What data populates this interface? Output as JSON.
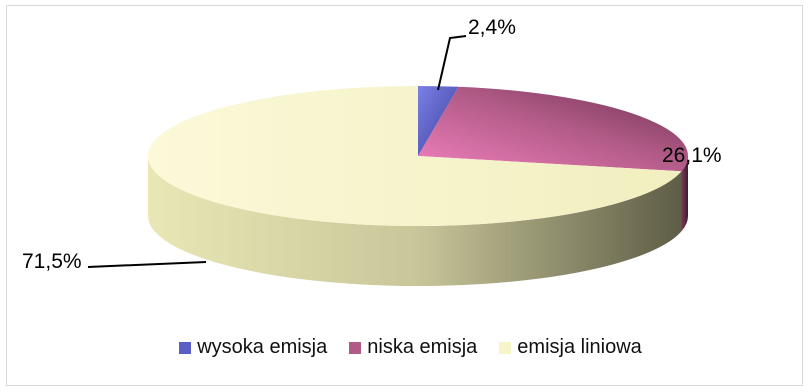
{
  "chart_data": {
    "type": "pie",
    "title": "",
    "three_d": true,
    "legend_position": "bottom",
    "slices": [
      {
        "name": "wysoka emisja",
        "value": 2.4,
        "label": "2,4%",
        "color": "#5a5fc8"
      },
      {
        "name": "niska emisja",
        "value": 26.1,
        "label": "26,1%",
        "color": "#b05a86"
      },
      {
        "name": "emisja liniowa",
        "value": 71.5,
        "label": "71,5%",
        "color": "#f6f4c8"
      }
    ]
  }
}
